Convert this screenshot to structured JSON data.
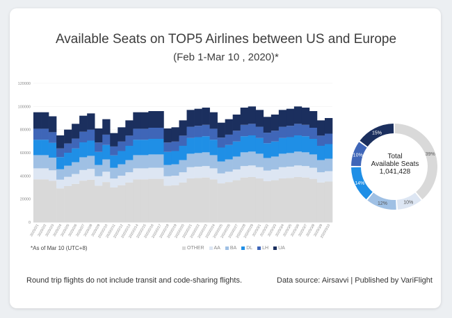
{
  "chart_data": [
    {
      "type": "bar",
      "stacked": true,
      "title": "Available Seats on TOP5 Airlines between US and Europe",
      "subtitle": "(Feb 1-Mar 10 , 2020)*",
      "ylim": [
        0,
        120000
      ],
      "yticks": [
        "0",
        "20000",
        "40000",
        "60000",
        "80000",
        "100000",
        "120000"
      ],
      "categories": [
        "2020/2/1",
        "2020/2/2",
        "2020/2/3",
        "2020/2/4",
        "2020/2/5",
        "2020/2/6",
        "2020/2/7",
        "2020/2/8",
        "2020/2/9",
        "2020/2/10",
        "2020/2/11",
        "2020/2/12",
        "2020/2/13",
        "2020/2/14",
        "2020/2/15",
        "2020/2/16",
        "2020/2/17",
        "2020/2/18",
        "2020/2/19",
        "2020/2/20",
        "2020/2/21",
        "2020/2/22",
        "2020/2/23",
        "2020/2/24",
        "2020/2/25",
        "2020/2/26",
        "2020/2/27",
        "2020/2/28",
        "2020/2/29",
        "2020/3/1",
        "2020/3/2",
        "2020/3/3",
        "2020/3/4",
        "2020/3/5",
        "2020/3/6",
        "2020/3/7",
        "2020/3/8",
        "2020/3/9",
        "2020/3/10"
      ],
      "totals": [
        95000,
        95000,
        91500,
        75000,
        80000,
        85000,
        92000,
        94000,
        81000,
        89000,
        77000,
        82000,
        88000,
        95000,
        95000,
        96000,
        96000,
        81000,
        82000,
        88000,
        97000,
        98000,
        99000,
        95000,
        86000,
        89000,
        93000,
        99000,
        100000,
        97000,
        91000,
        93000,
        97000,
        98000,
        100000,
        99000,
        96000,
        88000,
        90000
      ],
      "legend": [
        "OTHER",
        "AA",
        "BA",
        "DL",
        "LH",
        "UA"
      ],
      "shares": [
        0.39,
        0.1,
        0.12,
        0.14,
        0.1,
        0.15
      ],
      "colors": [
        "#d9d9d9",
        "#dde6f3",
        "#9fc0e4",
        "#1f8fe6",
        "#3f66b8",
        "#1b2f5e"
      ],
      "note": "*As of Mar 10 (UTC+8)"
    },
    {
      "type": "pie",
      "labels": [
        "OTHER",
        "AA",
        "BA",
        "DL",
        "LH",
        "UA"
      ],
      "values": [
        39,
        10,
        12,
        14,
        10,
        15
      ],
      "value_labels": [
        "39%",
        "10%",
        "12%",
        "14%",
        "10%",
        "15%"
      ],
      "colors": [
        "#d9d9d9",
        "#dde6f3",
        "#9fc0e4",
        "#1f8fe6",
        "#3f66b8",
        "#1b2f5e"
      ],
      "center_label": [
        "Total",
        "Available Seats",
        "1,041,428"
      ]
    }
  ],
  "footer": {
    "left": "Round trip flights do not include transit and code-sharing flights.",
    "right": "Data source: Airsavvi  |  Published by VariFlight"
  }
}
